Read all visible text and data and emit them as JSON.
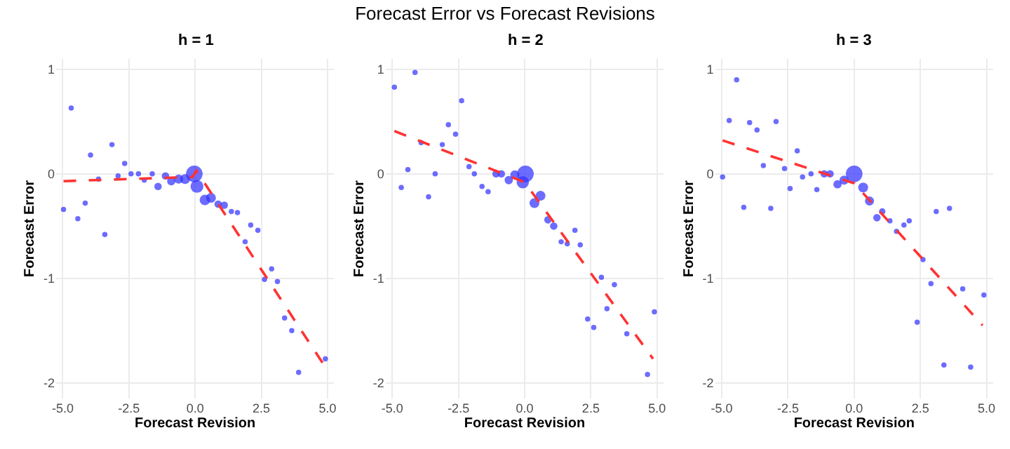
{
  "chart_data": [
    {
      "type": "bubble",
      "subtitle": "h = 1",
      "xlabel": "Forecast Revision",
      "ylabel": "Forecast Error",
      "xlim": [
        -5.25,
        5.25
      ],
      "ylim": [
        -2.15,
        1.1
      ],
      "xticks": [
        {
          "value": -5,
          "label": "-5.0"
        },
        {
          "value": -2.5,
          "label": "-2.5"
        },
        {
          "value": 0,
          "label": "0.0"
        },
        {
          "value": 2.5,
          "label": "2.5"
        },
        {
          "value": 5,
          "label": "5.0"
        }
      ],
      "yticks": [
        -2,
        -1,
        0,
        1
      ],
      "grid": true,
      "series": [
        {
          "type": "bubble",
          "color": "#3333ff",
          "marker": "circle",
          "x": [
            -4.97,
            -4.68,
            -4.43,
            -4.15,
            -3.95,
            -3.65,
            -3.41,
            -3.14,
            -2.91,
            -2.66,
            -2.42,
            -2.14,
            -1.92,
            -1.62,
            -1.4,
            -1.12,
            -0.9,
            -0.62,
            -0.38,
            -0.03,
            0.07,
            0.37,
            0.6,
            0.87,
            1.1,
            1.37,
            1.6,
            2.1,
            2.37,
            1.89,
            2.62,
            2.89,
            3.11,
            3.38,
            3.65,
            3.91,
            4.92
          ],
          "values": [
            -0.34,
            0.63,
            -0.43,
            -0.28,
            0.18,
            -0.05,
            -0.58,
            0.28,
            -0.02,
            0.1,
            0.0,
            0.0,
            -0.06,
            0.0,
            -0.12,
            -0.02,
            -0.07,
            -0.05,
            -0.05,
            0.0,
            -0.12,
            -0.25,
            -0.23,
            -0.29,
            -0.3,
            -0.36,
            -0.37,
            -0.49,
            -0.54,
            -0.65,
            -1.01,
            -0.91,
            -1.03,
            -1.38,
            -1.5,
            -1.9,
            -1.77
          ],
          "sizes": [
            0.1,
            0.1,
            0.1,
            0.1,
            0.1,
            0.1,
            0.1,
            0.1,
            0.1,
            0.1,
            0.1,
            0.1,
            0.1,
            0.1,
            0.2,
            0.2,
            0.25,
            0.3,
            0.35,
            1,
            0.6,
            0.4,
            0.35,
            0.2,
            0.2,
            0.1,
            0.1,
            0.1,
            0.1,
            0.1,
            0.1,
            0.1,
            0.1,
            0.1,
            0.1,
            0.1,
            0.1
          ]
        },
        {
          "type": "line",
          "color": "#ff3333",
          "line_style": "dashed",
          "x": [
            -4.97,
            -0.1,
            0.05,
            4.92
          ],
          "values": [
            -0.07,
            -0.03,
            0.03,
            -1.85
          ]
        }
      ]
    },
    {
      "type": "bubble",
      "title": "Forecast Error vs Forecast Revisions",
      "subtitle": "h = 2",
      "xlabel": "Forecast Revision",
      "ylabel": "Forecast Error",
      "xlim": [
        -5.25,
        5.25
      ],
      "ylim": [
        -2.15,
        1.1
      ],
      "xticks": [
        {
          "value": -5,
          "label": "-5.0"
        },
        {
          "value": -2.5,
          "label": "-2.5"
        },
        {
          "value": 0,
          "label": "0.0"
        },
        {
          "value": 2.5,
          "label": "2.5"
        },
        {
          "value": 5,
          "label": "5.0"
        }
      ],
      "yticks": [
        -2,
        -1,
        0,
        1
      ],
      "grid": true,
      "series": [
        {
          "type": "bubble",
          "color": "#3333ff",
          "marker": "circle",
          "x": [
            -4.92,
            -4.66,
            -4.41,
            -4.14,
            -3.91,
            -3.63,
            -3.38,
            -3.11,
            -2.88,
            -2.61,
            -2.38,
            -2.1,
            -1.9,
            -1.61,
            -1.38,
            -1.08,
            -0.88,
            -0.6,
            -0.37,
            -0.07,
            0.03,
            0.37,
            0.6,
            0.88,
            1.1,
            1.38,
            1.61,
            1.9,
            2.1,
            2.38,
            2.61,
            2.9,
            3.11,
            3.39,
            3.86,
            4.64,
            4.9
          ],
          "values": [
            0.83,
            -0.13,
            0.04,
            0.97,
            0.3,
            -0.22,
            0.0,
            0.28,
            0.47,
            0.38,
            0.7,
            0.07,
            0.0,
            -0.12,
            -0.17,
            0.0,
            0.0,
            -0.06,
            -0.01,
            -0.08,
            0.0,
            -0.28,
            -0.21,
            -0.44,
            -0.5,
            -0.65,
            -0.67,
            -0.54,
            -0.68,
            -1.39,
            -1.47,
            -0.99,
            -1.29,
            -1.06,
            -1.53,
            -1.92,
            -1.32
          ],
          "sizes": [
            0.1,
            0.1,
            0.1,
            0.1,
            0.1,
            0.1,
            0.1,
            0.1,
            0.1,
            0.1,
            0.1,
            0.1,
            0.1,
            0.1,
            0.1,
            0.2,
            0.2,
            0.25,
            0.3,
            0.55,
            1,
            0.35,
            0.35,
            0.2,
            0.2,
            0.1,
            0.1,
            0.1,
            0.1,
            0.1,
            0.1,
            0.1,
            0.1,
            0.1,
            0.1,
            0.1,
            0.1
          ]
        },
        {
          "type": "line",
          "color": "#ff3333",
          "line_style": "dashed",
          "x": [
            -4.92,
            0,
            4.85
          ],
          "values": [
            0.41,
            -0.08,
            -1.77
          ]
        }
      ]
    },
    {
      "type": "bubble",
      "subtitle": "h = 3",
      "xlabel": "Forecast Revision",
      "ylabel": "Forecast Error",
      "xlim": [
        -5.25,
        5.25
      ],
      "ylim": [
        -2.15,
        1.1
      ],
      "xticks": [
        {
          "value": -5,
          "label": "-5.0"
        },
        {
          "value": -2.5,
          "label": "-2.5"
        },
        {
          "value": 0,
          "label": "0.0"
        },
        {
          "value": 2.5,
          "label": "2.5"
        },
        {
          "value": 5,
          "label": "5.0"
        }
      ],
      "yticks": [
        -2,
        -1,
        0,
        1
      ],
      "grid": true,
      "series": [
        {
          "type": "bubble",
          "color": "#3333ff",
          "marker": "circle",
          "x": [
            -4.97,
            -4.72,
            -4.44,
            -4.17,
            -3.95,
            -3.67,
            -3.43,
            -3.15,
            -2.95,
            -2.63,
            -2.42,
            -2.15,
            -1.95,
            -1.63,
            -1.41,
            -1.13,
            -0.91,
            -0.63,
            -0.38,
            0.0,
            0.34,
            0.58,
            0.86,
            1.06,
            1.35,
            1.6,
            1.88,
            2.08,
            2.6,
            2.38,
            2.9,
            3.1,
            3.39,
            3.6,
            4.1,
            4.4,
            4.9
          ],
          "values": [
            -0.03,
            0.51,
            0.9,
            -0.32,
            0.49,
            0.42,
            0.08,
            -0.33,
            0.5,
            0.05,
            -0.14,
            0.22,
            -0.03,
            0.0,
            -0.15,
            0.0,
            0.0,
            -0.1,
            -0.06,
            0.0,
            -0.13,
            -0.26,
            -0.42,
            -0.36,
            -0.45,
            -0.55,
            -0.49,
            -0.45,
            -0.82,
            -1.42,
            -1.05,
            -0.36,
            -1.83,
            -0.33,
            -1.1,
            -1.85,
            -1.16
          ],
          "sizes": [
            0.1,
            0.1,
            0.1,
            0.1,
            0.1,
            0.1,
            0.1,
            0.1,
            0.1,
            0.1,
            0.1,
            0.1,
            0.1,
            0.1,
            0.1,
            0.2,
            0.2,
            0.25,
            0.3,
            1,
            0.35,
            0.3,
            0.2,
            0.15,
            0.1,
            0.1,
            0.1,
            0.1,
            0.1,
            0.1,
            0.1,
            0.1,
            0.1,
            0.1,
            0.1,
            0.1,
            0.1
          ]
        },
        {
          "type": "line",
          "color": "#ff3333",
          "line_style": "dashed",
          "x": [
            -4.97,
            0,
            4.85
          ],
          "values": [
            0.32,
            -0.09,
            -1.45
          ]
        }
      ]
    }
  ]
}
